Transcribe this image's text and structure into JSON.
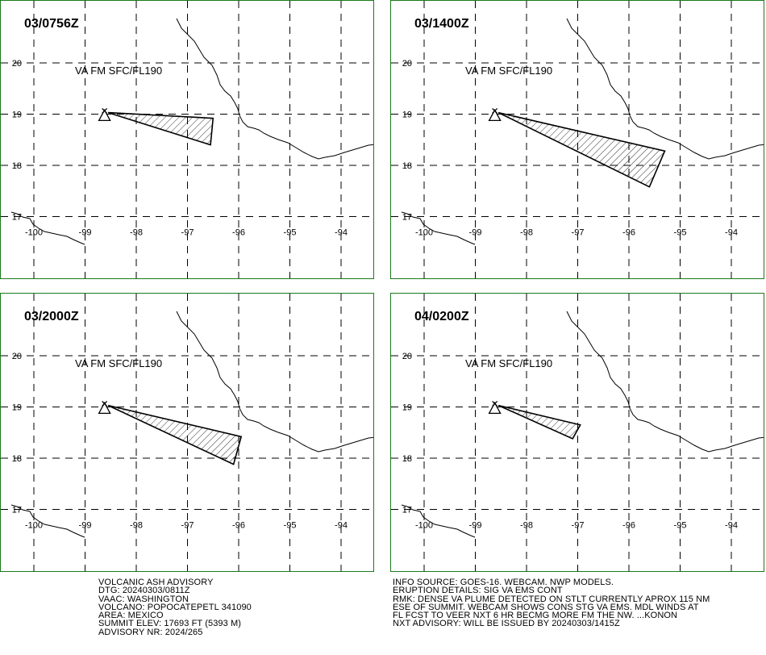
{
  "panels": [
    {
      "time": "03/0756Z",
      "label": "VA FM SFC/FL190",
      "plume": [
        [
          -98.55,
          19.03
        ],
        [
          -96.5,
          18.92
        ],
        [
          -96.55,
          18.4
        ]
      ]
    },
    {
      "time": "03/1400Z",
      "label": "VA FM SFC/FL190",
      "plume": [
        [
          -98.55,
          19.03
        ],
        [
          -95.3,
          18.28
        ],
        [
          -95.6,
          17.58
        ]
      ]
    },
    {
      "time": "03/2000Z",
      "label": "VA FM SFC/FL190",
      "plume": [
        [
          -98.55,
          19.03
        ],
        [
          -95.95,
          18.42
        ],
        [
          -96.1,
          17.88
        ]
      ]
    },
    {
      "time": "04/0200Z",
      "label": "VA FM SFC/FL190",
      "plume": [
        [
          -98.55,
          19.03
        ],
        [
          -96.95,
          18.65
        ],
        [
          -97.1,
          18.38
        ]
      ]
    }
  ],
  "map": {
    "lon_labels": [
      "-100",
      "-99",
      "-98",
      "-97",
      "-96",
      "-95",
      "-94"
    ],
    "lat_labels": [
      "20",
      "19",
      "18",
      "17"
    ],
    "volcano": {
      "lon": -98.62,
      "lat": 18.97,
      "name": "POPOCATEPETL"
    }
  },
  "advisory_left": [
    "VOLCANIC ASH ADVISORY",
    "DTG: 20240303/0811Z",
    "VAAC: WASHINGTON",
    "VOLCANO: POPOCATEPETL 341090",
    "AREA: MEXICO",
    "SUMMIT ELEV: 17693 FT (5393 M)",
    "ADVISORY NR: 2024/265"
  ],
  "advisory_right": [
    "INFO SOURCE: GOES-16. WEBCAM. NWP MODELS.",
    "ERUPTION DETAILS: SIG VA EMS CONT",
    "RMK: DENSE VA PLUME DETECTED ON STLT CURRENTLY APROX 115 NM",
    "ESE OF SUMMIT. WEBCAM SHOWS CONS STG VA EMS. MDL WINDS AT",
    "FL FCST TO VEER NXT 6 HR BECMG MORE FM THE NW. ...KONON",
    "NXT ADVISORY: WILL BE ISSUED BY 20240303/1415Z"
  ],
  "colors": {
    "border": "#1a7a1a",
    "ink": "#000000"
  }
}
